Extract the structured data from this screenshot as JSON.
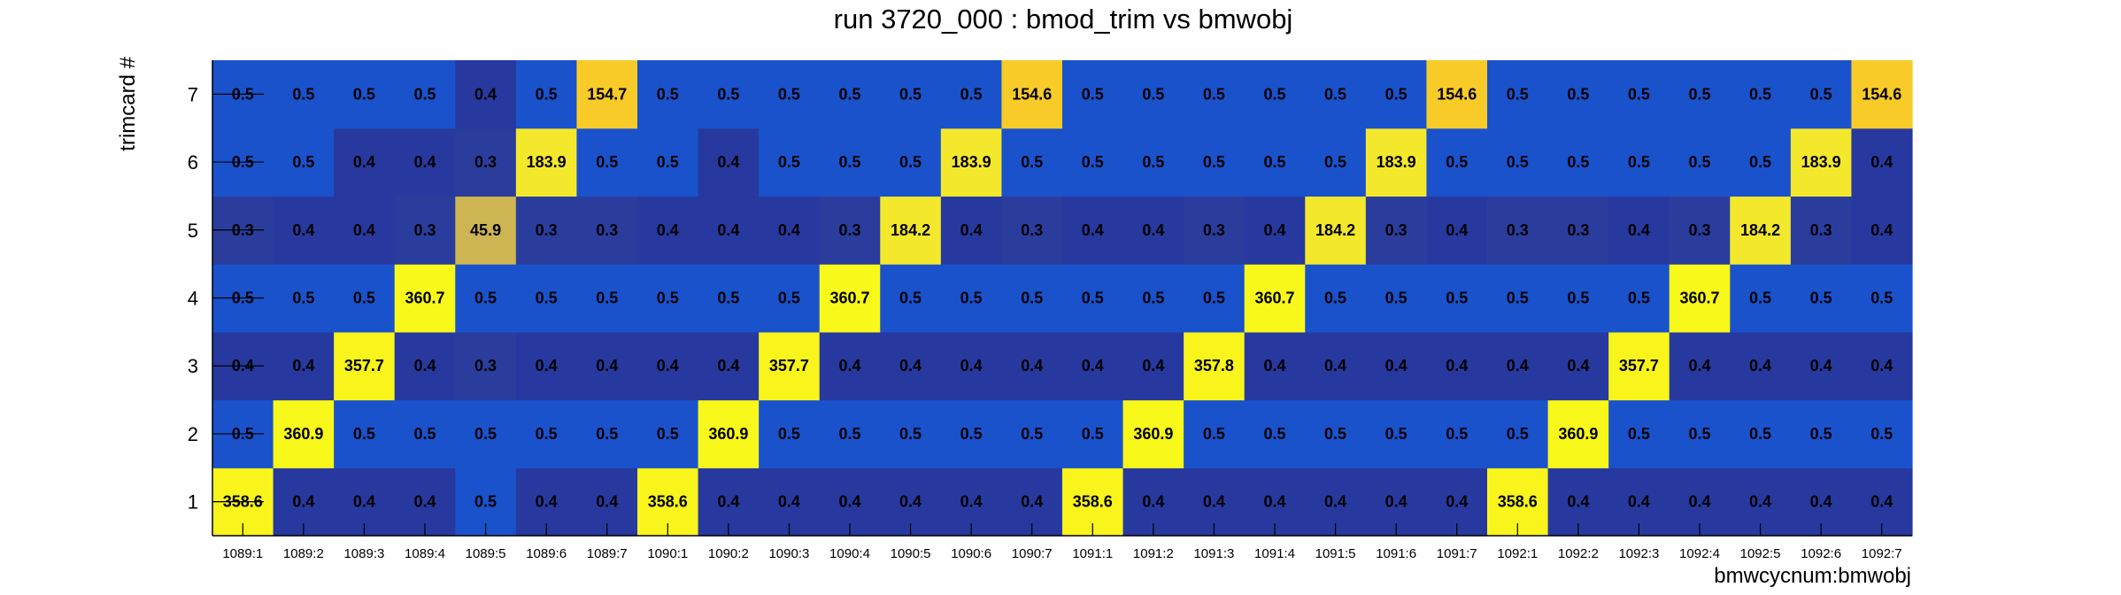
{
  "chart_data": {
    "type": "heatmap",
    "title": "run 3720_000 : bmod_trim vs bmwobj",
    "xlabel": "bmwcycnum:bmwobj",
    "ylabel": "trimcard #",
    "x_categories": [
      "1089:1",
      "1089:2",
      "1089:3",
      "1089:4",
      "1089:5",
      "1089:6",
      "1089:7",
      "1090:1",
      "1090:2",
      "1090:3",
      "1090:4",
      "1090:5",
      "1090:6",
      "1090:7",
      "1091:1",
      "1091:2",
      "1091:3",
      "1091:4",
      "1091:5",
      "1091:6",
      "1091:7",
      "1092:1",
      "1092:2",
      "1092:3",
      "1092:4",
      "1092:5",
      "1092:6",
      "1092:7"
    ],
    "y_categories": [
      "1",
      "2",
      "3",
      "4",
      "5",
      "6",
      "7"
    ],
    "values": [
      [
        "358.6",
        "0.4",
        "0.4",
        "0.4",
        "0.5",
        "0.4",
        "0.4",
        "358.6",
        "0.4",
        "0.4",
        "0.4",
        "0.4",
        "0.4",
        "0.4",
        "358.6",
        "0.4",
        "0.4",
        "0.4",
        "0.4",
        "0.4",
        "0.4",
        "358.6",
        "0.4",
        "0.4",
        "0.4",
        "0.4",
        "0.4",
        "0.4"
      ],
      [
        "0.5",
        "360.9",
        "0.5",
        "0.5",
        "0.5",
        "0.5",
        "0.5",
        "0.5",
        "360.9",
        "0.5",
        "0.5",
        "0.5",
        "0.5",
        "0.5",
        "0.5",
        "360.9",
        "0.5",
        "0.5",
        "0.5",
        "0.5",
        "0.5",
        "0.5",
        "360.9",
        "0.5",
        "0.5",
        "0.5",
        "0.5",
        "0.5"
      ],
      [
        "0.4",
        "0.4",
        "357.7",
        "0.4",
        "0.3",
        "0.4",
        "0.4",
        "0.4",
        "0.4",
        "357.7",
        "0.4",
        "0.4",
        "0.4",
        "0.4",
        "0.4",
        "0.4",
        "357.8",
        "0.4",
        "0.4",
        "0.4",
        "0.4",
        "0.4",
        "0.4",
        "357.7",
        "0.4",
        "0.4",
        "0.4",
        "0.4"
      ],
      [
        "0.5",
        "0.5",
        "0.5",
        "360.7",
        "0.5",
        "0.5",
        "0.5",
        "0.5",
        "0.5",
        "0.5",
        "360.7",
        "0.5",
        "0.5",
        "0.5",
        "0.5",
        "0.5",
        "0.5",
        "360.7",
        "0.5",
        "0.5",
        "0.5",
        "0.5",
        "0.5",
        "0.5",
        "360.7",
        "0.5",
        "0.5",
        "0.5"
      ],
      [
        "0.3",
        "0.4",
        "0.4",
        "0.3",
        "45.9",
        "0.3",
        "0.3",
        "0.4",
        "0.4",
        "0.4",
        "0.3",
        "184.2",
        "0.4",
        "0.3",
        "0.4",
        "0.4",
        "0.3",
        "0.4",
        "184.2",
        "0.3",
        "0.4",
        "0.3",
        "0.3",
        "0.4",
        "0.3",
        "184.2",
        "0.3",
        "0.4"
      ],
      [
        "0.5",
        "0.5",
        "0.4",
        "0.4",
        "0.3",
        "183.9",
        "0.5",
        "0.5",
        "0.4",
        "0.5",
        "0.5",
        "0.5",
        "183.9",
        "0.5",
        "0.5",
        "0.5",
        "0.5",
        "0.5",
        "0.5",
        "183.9",
        "0.5",
        "0.5",
        "0.5",
        "0.5",
        "0.5",
        "0.5",
        "183.9",
        "0.4"
      ],
      [
        "0.5",
        "0.5",
        "0.5",
        "0.5",
        "0.4",
        "0.5",
        "154.7",
        "0.5",
        "0.5",
        "0.5",
        "0.5",
        "0.5",
        "0.5",
        "154.6",
        "0.5",
        "0.5",
        "0.5",
        "0.5",
        "0.5",
        "0.5",
        "154.6",
        "0.5",
        "0.5",
        "0.5",
        "0.5",
        "0.5",
        "0.5",
        "154.6"
      ]
    ],
    "colors": {
      "low_0.3": "#2a3d9c",
      "low_0.4": "#27399e",
      "low_0.5": "#1a52cc",
      "mid_45.9": "#cdb554",
      "high_154": "#f8cb28",
      "high_184": "#f4e82c",
      "high_358": "#f8f41c",
      "high_360": "#f8f81a"
    },
    "grid": false,
    "legend": "none"
  }
}
